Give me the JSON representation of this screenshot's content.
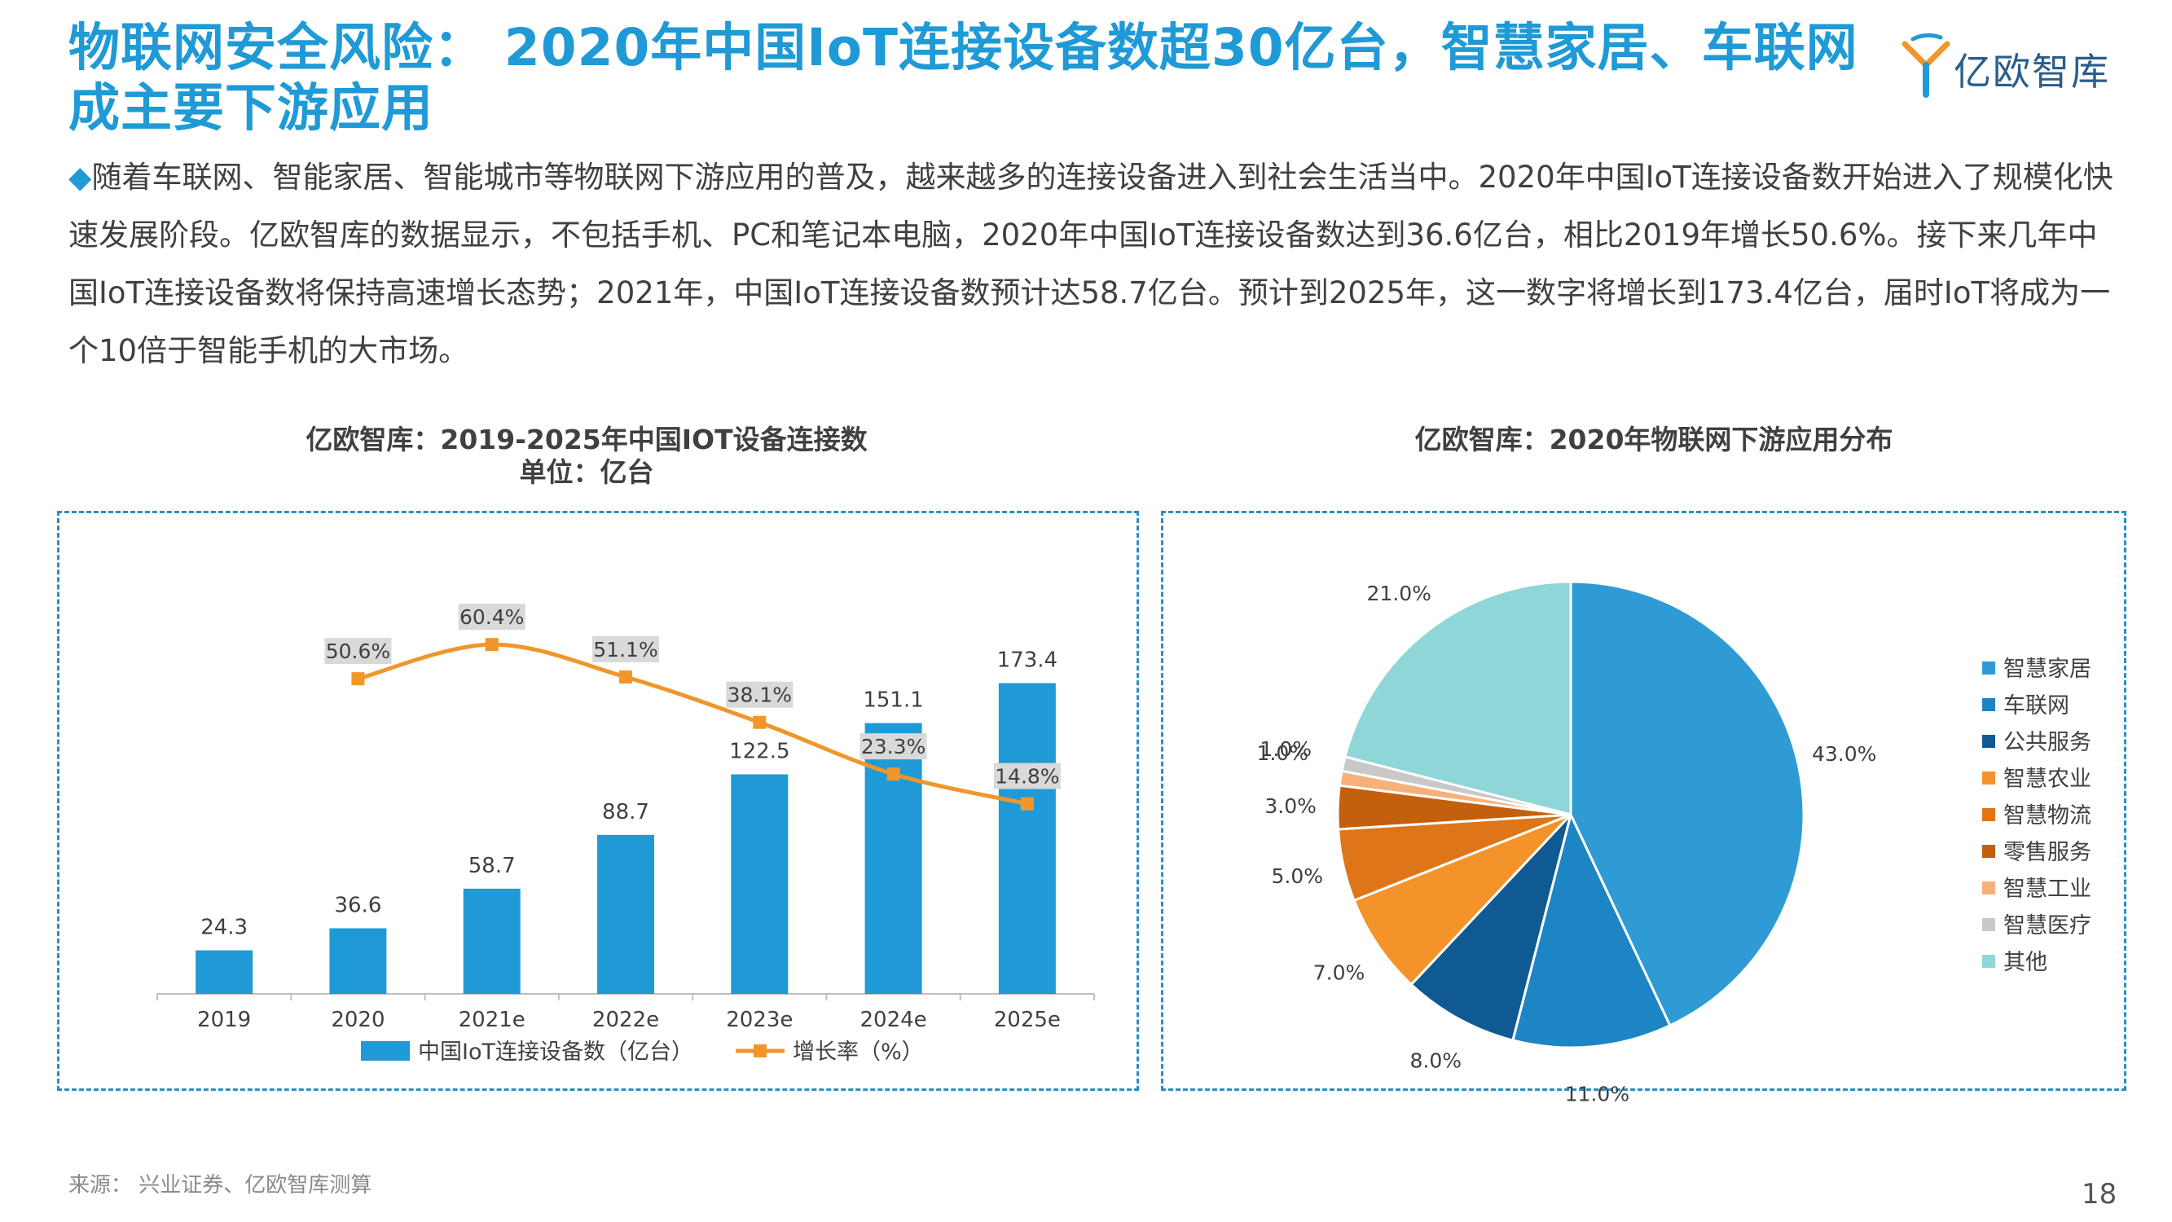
{
  "title": "物联网安全风险： 2020年中国IoT连接设备数超30亿台，智慧家居、车联网成主要下游应用",
  "logo": {
    "text": "亿欧智库"
  },
  "intro": {
    "bullet": "◆",
    "text": "随着车联网、智能家居、智能城市等物联网下游应用的普及，越来越多的连接设备进入到社会生活当中。2020年中国IoT连接设备数开始进入了规模化快速发展阶段。亿欧智库的数据显示，不包括手机、PC和笔记本电脑，2020年中国IoT连接设备数达到36.6亿台，相比2019年增长50.6%。接下来几年中国IoT连接设备数将保持高速增长态势；2021年，中国IoT连接设备数预计达58.7亿台。预计到2025年，这一数字将增长到173.4亿台，届时IoT将成为一个10倍于智能手机的大市场。"
  },
  "chart_data": [
    {
      "type": "bar",
      "title": "亿欧智库：2019-2025年中国IOT设备连接数",
      "subtitle": "单位：亿台",
      "categories": [
        "2019",
        "2020",
        "2021e",
        "2022e",
        "2023e",
        "2024e",
        "2025e"
      ],
      "series": [
        {
          "name": "中国IoT连接设备数（亿台）",
          "type": "bar",
          "color": "#1f9ad6",
          "values": [
            24.3,
            36.6,
            58.7,
            88.7,
            122.5,
            151.1,
            173.4
          ],
          "labels": [
            "24.3",
            "36.6",
            "58.7",
            "88.7",
            "122.5",
            "151.1",
            "173.4"
          ]
        },
        {
          "name": "增长率（%）",
          "type": "line",
          "color": "#f0962a",
          "values": [
            null,
            50.6,
            60.4,
            51.1,
            38.1,
            23.3,
            14.8
          ],
          "labels": [
            "",
            "50.6%",
            "60.4%",
            "51.1%",
            "38.1%",
            "23.3%",
            "14.8%"
          ]
        }
      ],
      "legend": "bottom"
    },
    {
      "type": "pie",
      "title": "亿欧智库：2020年物联网下游应用分布",
      "slices": [
        {
          "name": "智慧家居",
          "value": 43.0,
          "label": "43.0%",
          "color": "#2e9bd5"
        },
        {
          "name": "车联网",
          "value": 11.0,
          "label": "11.0%",
          "color": "#1d85c4"
        },
        {
          "name": "公共服务",
          "value": 8.0,
          "label": "8.0%",
          "color": "#0f5a93"
        },
        {
          "name": "智慧农业",
          "value": 7.0,
          "label": "7.0%",
          "color": "#f5932b"
        },
        {
          "name": "智慧物流",
          "value": 5.0,
          "label": "5.0%",
          "color": "#de7518"
        },
        {
          "name": "零售服务",
          "value": 3.0,
          "label": "3.0%",
          "color": "#c45f0c"
        },
        {
          "name": "智慧工业",
          "value": 1.0,
          "label": "1.0%",
          "color": "#f7b07a"
        },
        {
          "name": "智慧医疗",
          "value": 1.0,
          "label": "1.0%",
          "color": "#c8c8c8"
        },
        {
          "name": "其他",
          "value": 21.0,
          "label": "21.0%",
          "color": "#8fd6d8"
        }
      ],
      "legend": "right"
    }
  ],
  "source": "来源：  兴业证券、亿欧智库测算",
  "page_number": "18"
}
